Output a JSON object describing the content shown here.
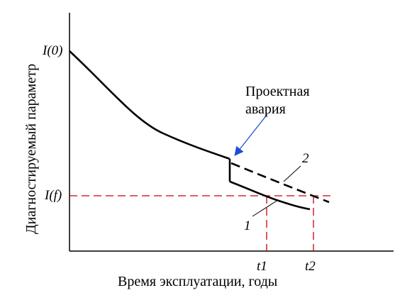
{
  "diagram": {
    "y_axis_label": "Диагностируемый параметр",
    "x_axis_label": "Время эксплуатации, годы",
    "y_tick_initial": "I(0)",
    "y_tick_failure": "I(f)",
    "x_tick_t1": "t1",
    "x_tick_t2": "t2",
    "annotation_line1": "Проектная",
    "annotation_line2": "авария",
    "curve_1_label": "1",
    "curve_2_label": "2",
    "colors": {
      "curve": "#000000",
      "threshold_dashed": "#cc0000",
      "annotation_arrow": "#1a4fd6",
      "axes": "#000000"
    }
  }
}
